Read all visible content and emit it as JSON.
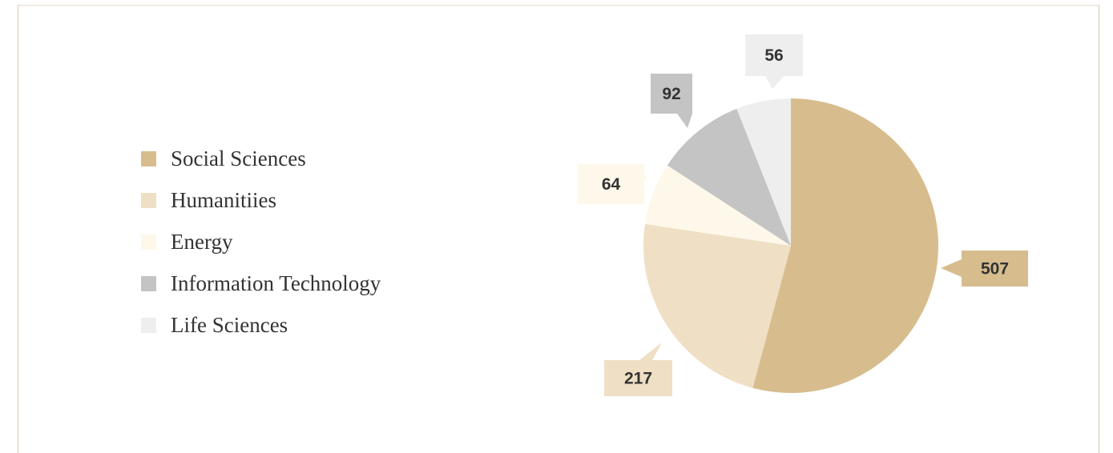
{
  "chart_data": {
    "type": "pie",
    "categories": [
      "Social Sciences",
      "Humanitiies",
      "Energy",
      "Information Technology",
      "Life Sciences"
    ],
    "values": [
      507,
      217,
      64,
      92,
      56
    ],
    "colors": [
      "#d7bd8e",
      "#efdfc4",
      "#fdf8ea",
      "#c4c4c4",
      "#eeeeee"
    ],
    "legend_position": "left",
    "start_angle": "12 o'clock, clockwise"
  }
}
